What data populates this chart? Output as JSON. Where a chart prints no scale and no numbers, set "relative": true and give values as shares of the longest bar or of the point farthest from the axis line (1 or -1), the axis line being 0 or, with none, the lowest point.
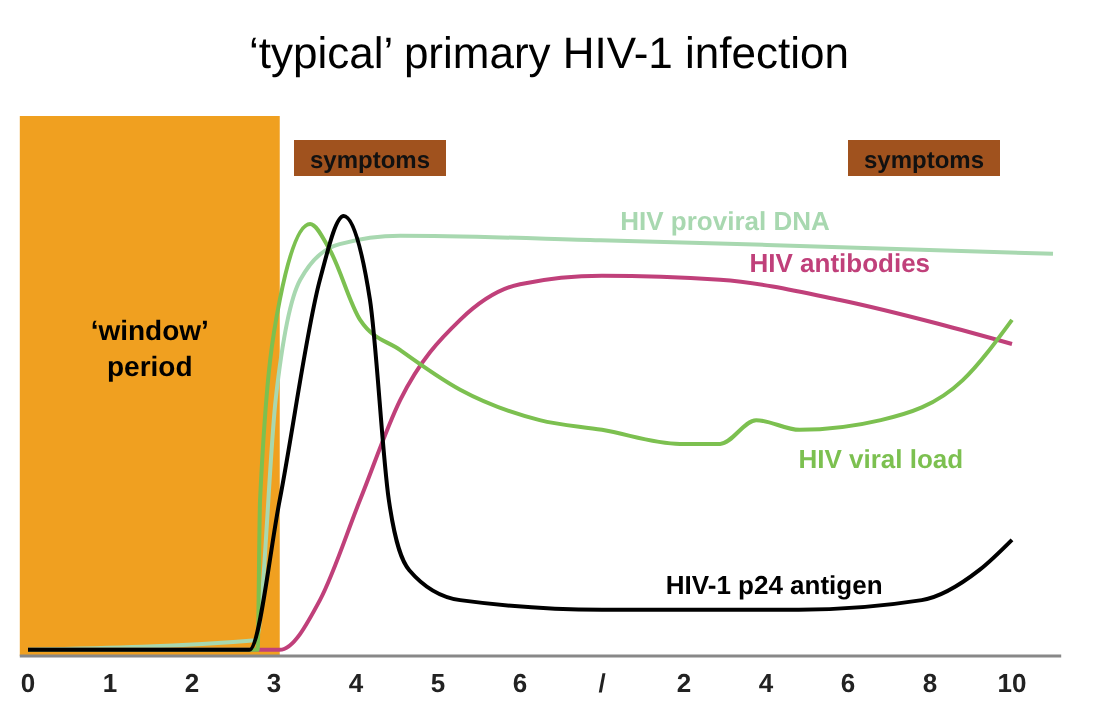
{
  "chart_data": {
    "type": "line",
    "title": "‘typical’ primary HIV-1 infection",
    "relative": true,
    "xlim": [
      -0.1,
      12.6
    ],
    "xticks": [
      {
        "value": 0,
        "label": "0"
      },
      {
        "value": 1,
        "label": "1"
      },
      {
        "value": 2,
        "label": "2"
      },
      {
        "value": 3,
        "label": "3"
      },
      {
        "value": 4,
        "label": "4"
      },
      {
        "value": 5,
        "label": "5"
      },
      {
        "value": 6,
        "label": "6"
      },
      {
        "value": 7,
        "label": "/"
      }
    ],
    "x2lim": [
      -14.2,
      11.2
    ],
    "x2ticks": [
      2,
      4,
      6,
      8,
      10
    ],
    "annotations": [
      "symptoms",
      "symptoms"
    ],
    "bands": [
      {
        "axis": "x",
        "from": -0.1,
        "to": 3.07,
        "label": "‘window’ period",
        "color": "#f0a020"
      }
    ],
    "series": [
      {
        "name": "HIV proviral DNA",
        "color": "#a8d8b0",
        "x": [
          0,
          2.78,
          3.02,
          3.32,
          3.8,
          4.54,
          6.98,
          9.41,
          12.5
        ],
        "values": [
          0.014,
          0.036,
          0.582,
          0.855,
          0.936,
          0.955,
          0.945,
          0.932,
          0.914
        ]
      },
      {
        "name": "HIV antibodies",
        "color": "#c0407a",
        "x": [
          0,
          3.07,
          3.56,
          4.05,
          4.54,
          5.27,
          6,
          7,
          8.44,
          9.9,
          11.1,
          12
        ],
        "values": [
          0.014,
          0.014,
          0.127,
          0.355,
          0.582,
          0.764,
          0.845,
          0.864,
          0.855,
          0.809,
          0.755,
          0.709
        ]
      },
      {
        "name": "HIV viral load",
        "color": "#7cc050",
        "x": [
          0,
          2.8,
          2.83,
          3.07,
          3.44,
          3.68,
          4.05,
          4.54,
          5.27,
          6.24,
          7,
          7.95,
          8.44,
          8.88,
          9.41,
          10.4,
          11.4,
          12
        ],
        "values": [
          0.014,
          0.014,
          0.355,
          0.809,
          0.982,
          0.923,
          0.764,
          0.695,
          0.605,
          0.536,
          0.514,
          0.482,
          0.482,
          0.536,
          0.514,
          0.536,
          0.627,
          0.764
        ]
      },
      {
        "name": "HIV-1 p24 antigen",
        "color": "#000000",
        "x": [
          0,
          2.7,
          3.07,
          3.56,
          3.85,
          4.17,
          4.4,
          4.65,
          5.27,
          7,
          9.4,
          10.9,
          11.6,
          12
        ],
        "values": [
          0.014,
          0.014,
          0.355,
          0.855,
          1,
          0.81,
          0.355,
          0.195,
          0.127,
          0.105,
          0.105,
          0.127,
          0.195,
          0.264
        ]
      }
    ]
  }
}
